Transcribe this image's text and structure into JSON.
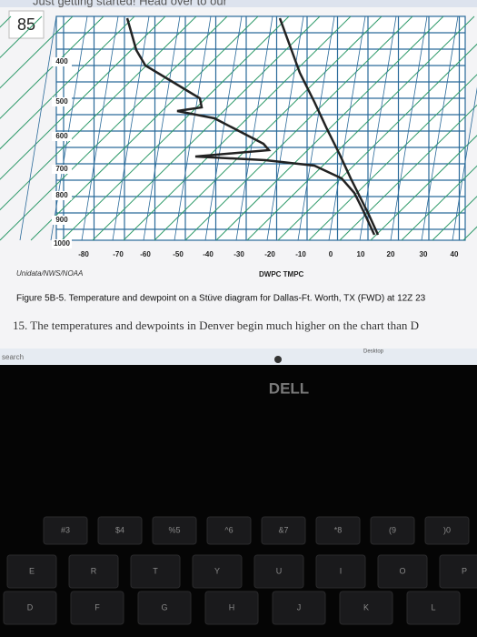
{
  "browser": {
    "banner": "Just getting started! Head over to our"
  },
  "page_number": "85",
  "diagram": {
    "y_labels": [
      "400",
      "500",
      "600",
      "700",
      "800",
      "900",
      "1000"
    ],
    "x_labels": [
      "-80",
      "-70",
      "-60",
      "-50",
      "-40",
      "-30",
      "-20",
      "-10",
      "0",
      "10",
      "20",
      "30",
      "40"
    ],
    "source": "Unidata/NWS/NOAA",
    "legend": "DWPC TMPC"
  },
  "caption": "Figure 5B-5. Temperature and dewpoint on a Stüve diagram for Dallas-Ft. Worth, TX (FWD) at 12Z 23",
  "question": "15. The temperatures and dewpoints in Denver begin much higher on the chart than D",
  "taskbar": {
    "search": "search",
    "desktop": "Desktop"
  },
  "laptop": {
    "brand": "DELL"
  },
  "keyboard": {
    "numbers": [
      "#3",
      "$4",
      "%5",
      "^6",
      "&7",
      "*8",
      "(9",
      ")0"
    ],
    "top_row": [
      "E",
      "R",
      "T",
      "Y",
      "U",
      "I",
      "O",
      "P"
    ],
    "home_row": [
      "D",
      "F",
      "G",
      "H",
      "J",
      "K",
      "L"
    ]
  }
}
